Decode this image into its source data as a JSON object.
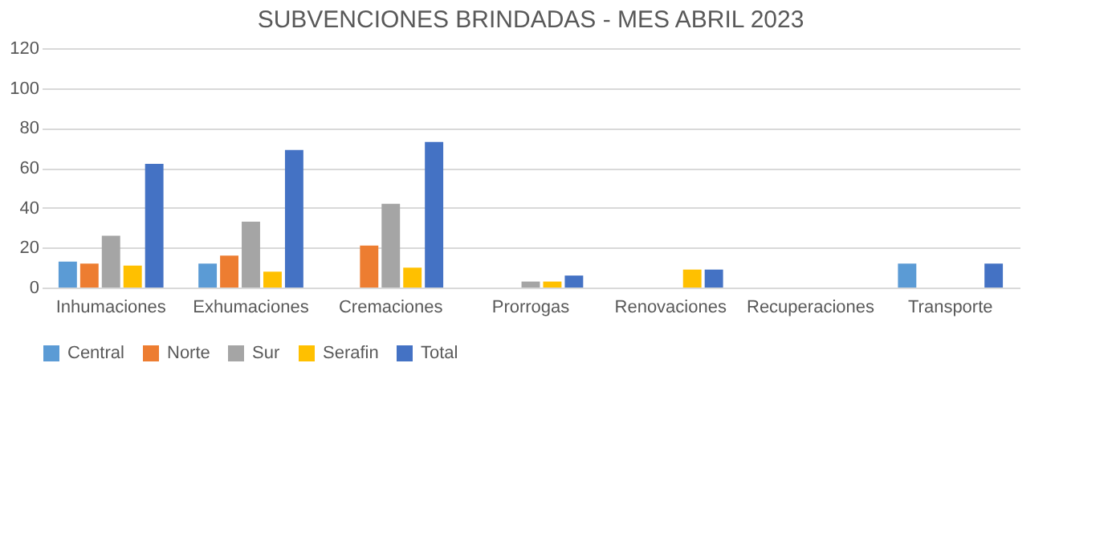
{
  "chart_data": {
    "type": "bar",
    "title": "SUBVENCIONES BRINDADAS - MES ABRIL 2023",
    "categories": [
      "Inhumaciones",
      "Exhumaciones",
      "Cremaciones",
      "Prorrogas",
      "Renovaciones",
      "Recuperaciones",
      "Transporte"
    ],
    "series": [
      {
        "name": "Central",
        "color": "#5b9bd5",
        "values": [
          13,
          12,
          0,
          0,
          0,
          0,
          12
        ]
      },
      {
        "name": "Norte",
        "color": "#ed7d31",
        "values": [
          12,
          16,
          21,
          0,
          0,
          0,
          0
        ]
      },
      {
        "name": "Sur",
        "color": "#a5a5a5",
        "values": [
          26,
          33,
          42,
          3,
          0,
          0,
          0
        ]
      },
      {
        "name": "Serafin",
        "color": "#ffc000",
        "values": [
          11,
          8,
          10,
          3,
          9,
          0,
          0
        ]
      },
      {
        "name": "Total",
        "color": "#4472c4",
        "values": [
          62,
          69,
          73,
          6,
          9,
          0,
          12
        ]
      }
    ],
    "ylim": [
      0,
      120
    ],
    "yticks": [
      0,
      20,
      40,
      60,
      80,
      100,
      120
    ],
    "grid": "y",
    "legend": "bottom"
  }
}
